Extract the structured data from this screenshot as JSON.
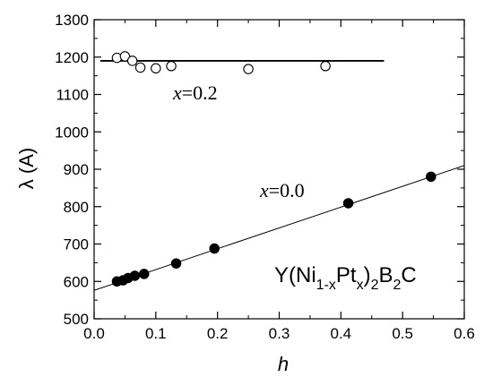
{
  "chart_data": {
    "type": "scatter",
    "title": "",
    "xlabel": "h",
    "ylabel": "λ (A)",
    "xlim": [
      0.0,
      0.6
    ],
    "ylim": [
      500,
      1300
    ],
    "x_ticks": [
      "0.0",
      "0.1",
      "0.2",
      "0.3",
      "0.4",
      "0.5",
      "0.6"
    ],
    "y_ticks": [
      "500",
      "600",
      "700",
      "800",
      "900",
      "1000",
      "1100",
      "1200",
      "1300"
    ],
    "grid": false,
    "legend": "none",
    "compound_label": {
      "text": "Y(Ni1-xPtx)2B2C",
      "base_1": "Y(Ni",
      "sub_1": "1-x",
      "base_2": "Pt",
      "sub_2": "x",
      "base_3": ")",
      "sub_3": "2",
      "base_4": "B",
      "sub_4": "2",
      "base_5": "C"
    },
    "series": [
      {
        "label_text": "x=0.2",
        "label_var": "x",
        "label_rest": "=0.2",
        "marker": "open-circle",
        "points": [
          {
            "x": 0.037,
            "y": 1198
          },
          {
            "x": 0.05,
            "y": 1202
          },
          {
            "x": 0.062,
            "y": 1190
          },
          {
            "x": 0.075,
            "y": 1172
          },
          {
            "x": 0.1,
            "y": 1170
          },
          {
            "x": 0.125,
            "y": 1176
          },
          {
            "x": 0.25,
            "y": 1168
          },
          {
            "x": 0.375,
            "y": 1176
          }
        ],
        "fit_line": {
          "x_start": 0.01,
          "x_end": 0.47,
          "y_start": 1190,
          "y_end": 1190
        }
      },
      {
        "label_text": "x=0.0",
        "label_var": "x",
        "label_rest": "=0.0",
        "marker": "filled-circle",
        "points": [
          {
            "x": 0.037,
            "y": 600
          },
          {
            "x": 0.047,
            "y": 603
          },
          {
            "x": 0.055,
            "y": 609
          },
          {
            "x": 0.066,
            "y": 615
          },
          {
            "x": 0.081,
            "y": 620
          },
          {
            "x": 0.133,
            "y": 648
          },
          {
            "x": 0.195,
            "y": 688
          },
          {
            "x": 0.412,
            "y": 809
          },
          {
            "x": 0.546,
            "y": 880
          }
        ],
        "fit_line": {
          "x_start": 0.0,
          "x_end": 0.6,
          "y_start": 576,
          "y_end": 910
        }
      }
    ],
    "colors": {
      "axis": "#000000",
      "marker": "#000000",
      "background": "#ffffff"
    }
  }
}
